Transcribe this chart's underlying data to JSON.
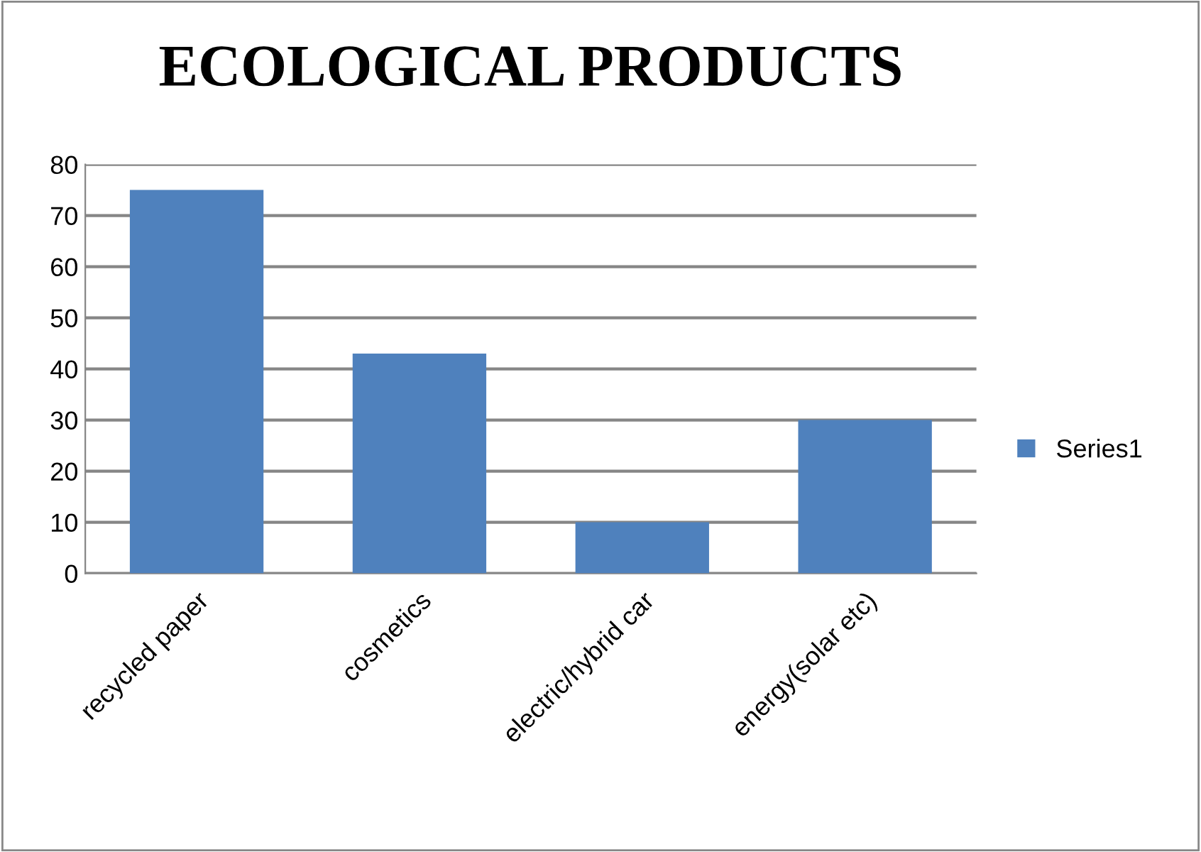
{
  "chart_data": {
    "type": "bar",
    "title": "ECOLOGICAL PRODUCTS",
    "categories": [
      "recycled paper",
      "cosmetics",
      "electric/hybrid car",
      "energy(solar etc)"
    ],
    "series": [
      {
        "name": "Series1",
        "color": "#4f81bd",
        "values": [
          75,
          43,
          10,
          30
        ]
      }
    ],
    "ylim": [
      0,
      80
    ],
    "yticks": [
      0,
      10,
      20,
      30,
      40,
      50,
      60,
      70,
      80
    ],
    "grid": "y",
    "legend": "right"
  }
}
